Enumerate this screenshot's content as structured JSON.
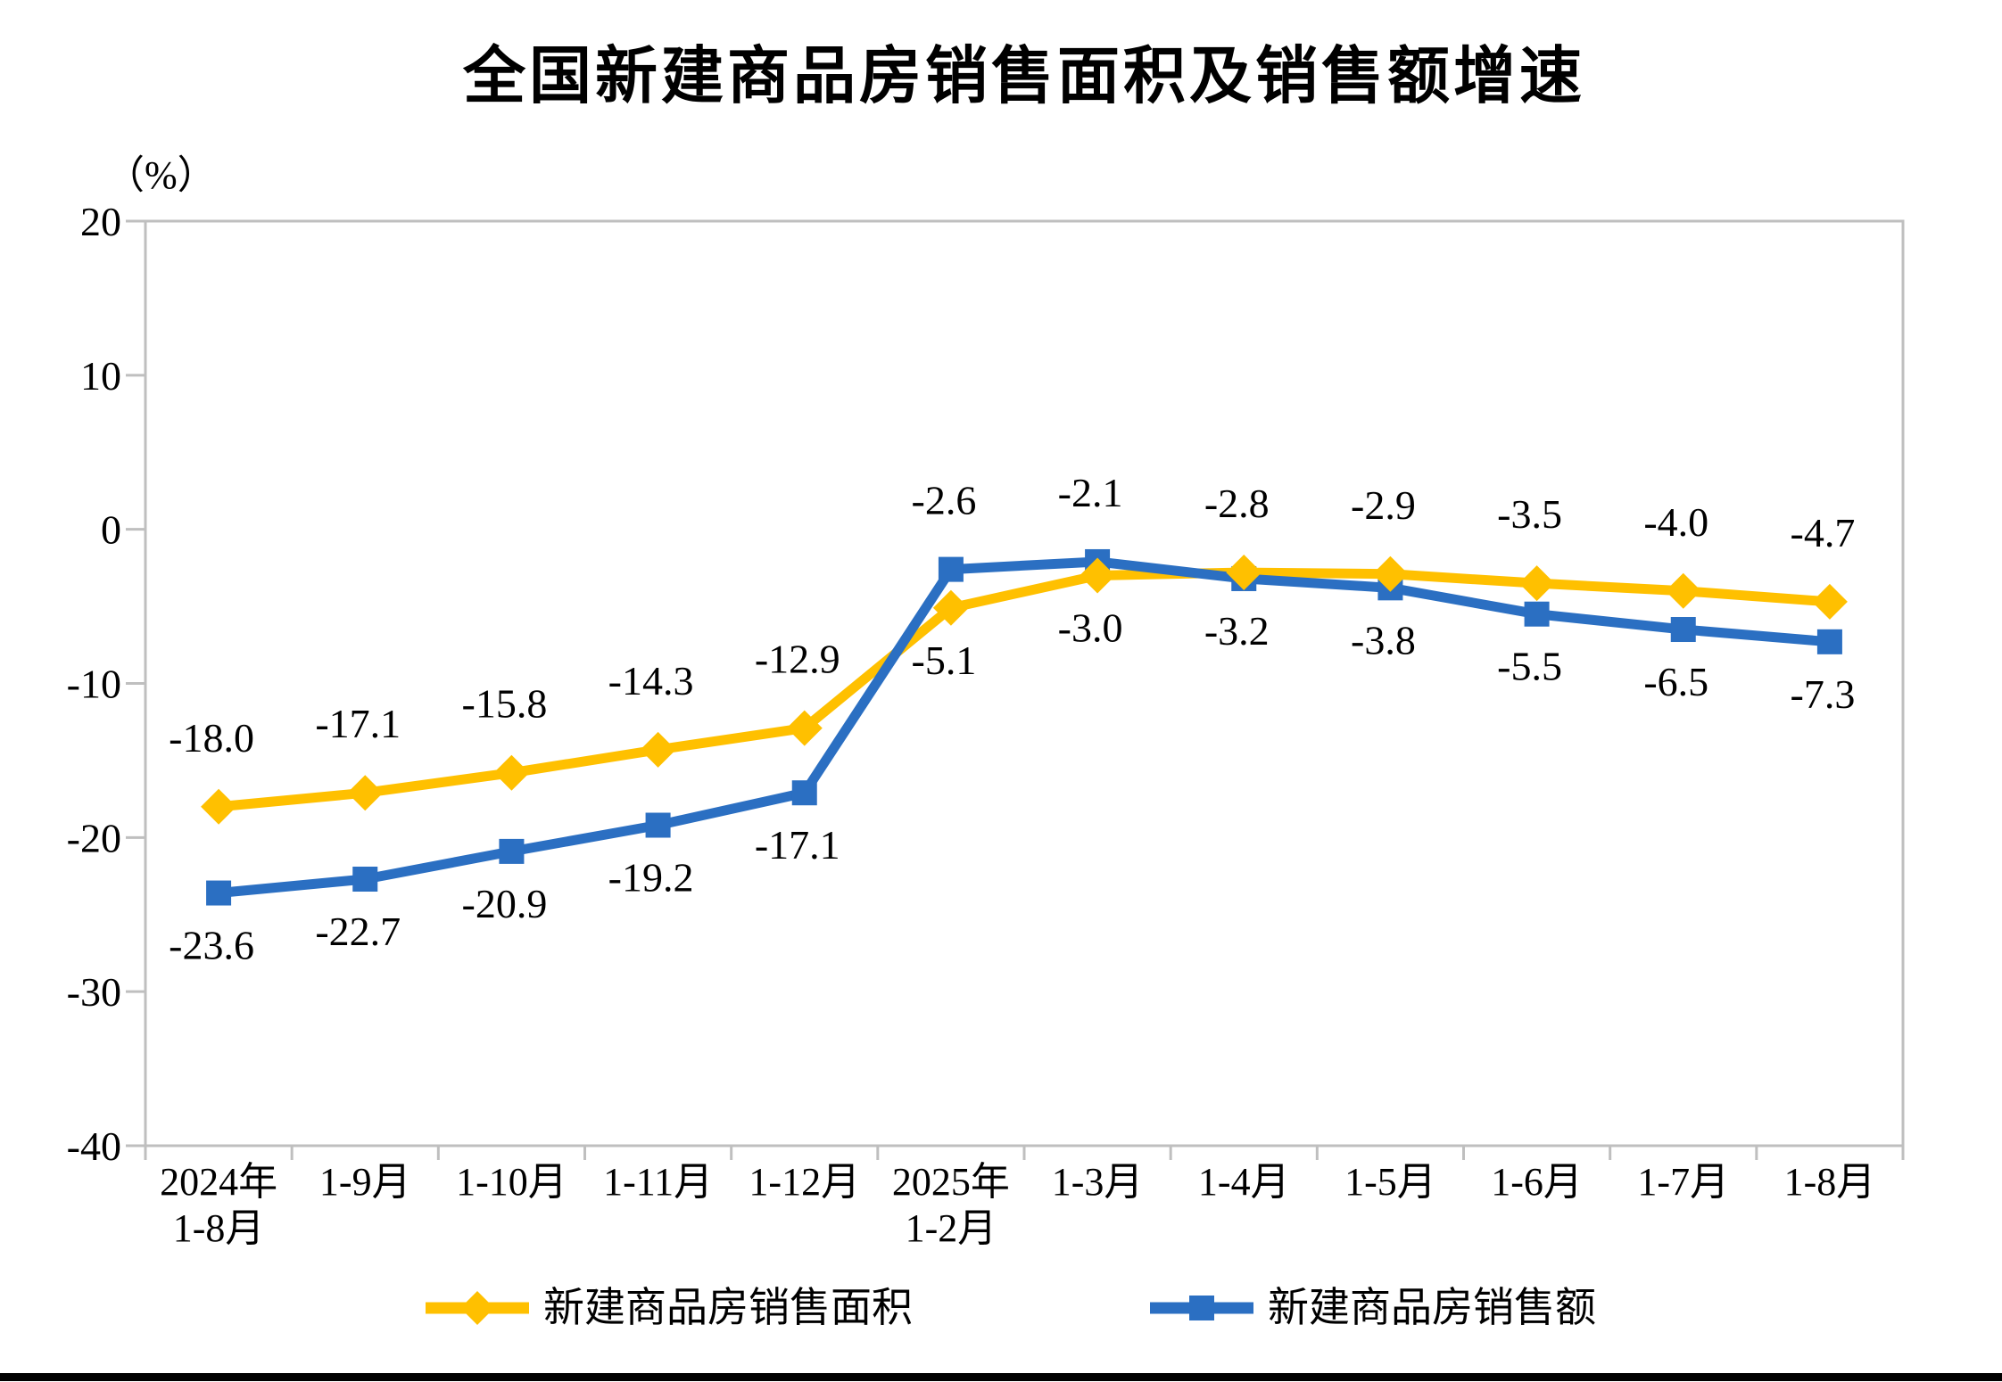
{
  "chart_data": {
    "type": "line",
    "title": "全国新建商品房销售面积及销售额增速",
    "y_unit_label": "（%）",
    "categories": [
      "2024年1-8月",
      "1-9月",
      "1-10月",
      "1-11月",
      "1-12月",
      "2025年1-2月",
      "1-3月",
      "1-4月",
      "1-5月",
      "1-6月",
      "1-7月",
      "1-8月"
    ],
    "x_label_lines": [
      [
        "2024年",
        "1-8月"
      ],
      [
        "1-9月"
      ],
      [
        "1-10月"
      ],
      [
        "1-11月"
      ],
      [
        "1-12月"
      ],
      [
        "2025年",
        "1-2月"
      ],
      [
        "1-3月"
      ],
      [
        "1-4月"
      ],
      [
        "1-5月"
      ],
      [
        "1-6月"
      ],
      [
        "1-7月"
      ],
      [
        "1-8月"
      ]
    ],
    "series": [
      {
        "name": "新建商品房销售面积",
        "color": "#FFC000",
        "marker": "diamond",
        "values": [
          -18.0,
          -17.1,
          -15.8,
          -14.3,
          -12.9,
          -5.1,
          -3.0,
          -2.8,
          -2.9,
          -3.5,
          -4.0,
          -4.7
        ],
        "label_side": [
          "above",
          "above",
          "above",
          "above",
          "above",
          "below",
          "below",
          "above",
          "above",
          "above",
          "above",
          "above"
        ]
      },
      {
        "name": "新建商品房销售额",
        "color": "#2B6FC2",
        "marker": "square",
        "values": [
          -23.6,
          -22.7,
          -20.9,
          -19.2,
          -17.1,
          -2.6,
          -2.1,
          -3.2,
          -3.8,
          -5.5,
          -6.5,
          -7.3
        ],
        "label_side": [
          "below",
          "below",
          "below",
          "below",
          "below",
          "above",
          "above",
          "below",
          "below",
          "below",
          "below",
          "below"
        ]
      }
    ],
    "y_ticks": [
      20,
      10,
      0,
      -10,
      -20,
      -30,
      -40
    ],
    "ylim": [
      -40,
      20
    ],
    "grid": false,
    "legend_position": "bottom",
    "colors": {
      "axis": "#BFBFBF",
      "text": "#000000",
      "bottom_bar": "#000000",
      "background": "#FFFFFF"
    }
  }
}
